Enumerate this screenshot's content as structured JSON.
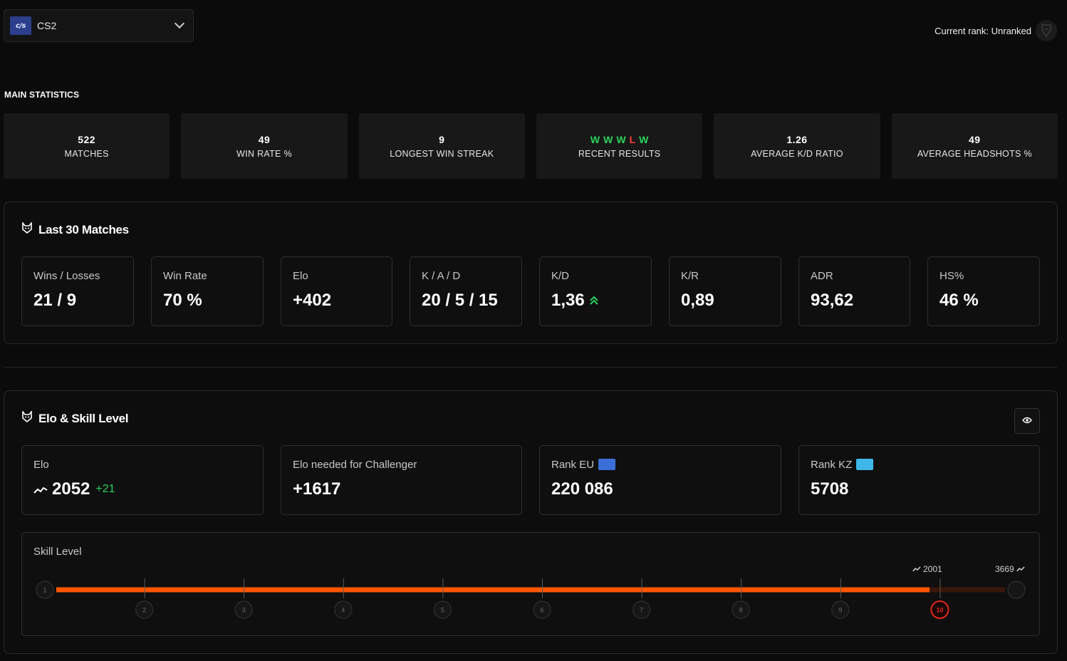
{
  "header": {
    "game": {
      "logo_text": "c/s",
      "name": "CS2"
    },
    "rank_label": "Current rank: Unranked"
  },
  "main_statistics": {
    "title": "MAIN STATISTICS",
    "cards": [
      {
        "value": "522",
        "label": "MATCHES"
      },
      {
        "value": "49",
        "label": "WIN RATE %"
      },
      {
        "value": "9",
        "label": "LONGEST WIN STREAK"
      },
      {
        "label": "RECENT RESULTS",
        "results": [
          "W",
          "W",
          "W",
          "L",
          "W"
        ]
      },
      {
        "value": "1.26",
        "label": "AVERAGE K/D RATIO"
      },
      {
        "value": "49",
        "label": "AVERAGE HEADSHOTS %"
      }
    ]
  },
  "last30": {
    "title": "Last 30 Matches",
    "cards": [
      {
        "label": "Wins / Losses",
        "value": "21 / 9"
      },
      {
        "label": "Win Rate",
        "value": "70 %"
      },
      {
        "label": "Elo",
        "value": "+402"
      },
      {
        "label": "K / A / D",
        "value": "20 / 5 / 15"
      },
      {
        "label": "K/D",
        "value": "1,36"
      },
      {
        "label": "K/R",
        "value": "0,89"
      },
      {
        "label": "ADR",
        "value": "93,62"
      },
      {
        "label": "HS%",
        "value": "46 %"
      }
    ]
  },
  "elo_skill": {
    "title": "Elo & Skill Level",
    "cards": [
      {
        "label": "Elo",
        "value": "2052",
        "delta": "+21"
      },
      {
        "label": "Elo needed for Challenger",
        "value": "+1617"
      },
      {
        "label": "Rank EU",
        "value": "220 086"
      },
      {
        "label": "Rank KZ",
        "value": "5708"
      }
    ],
    "skill": {
      "label": "Skill Level",
      "levels": [
        "1",
        "2",
        "3",
        "4",
        "5",
        "6",
        "7",
        "8",
        "9",
        "10"
      ],
      "current_level": 10,
      "level_min_elo": "2001",
      "max_elo": "3669",
      "progress": 0.88
    }
  },
  "colors": {
    "accent": "#ff5500",
    "win": "#2bd35c",
    "loss": "#ff3b3b",
    "level10": "#e02a1a"
  }
}
